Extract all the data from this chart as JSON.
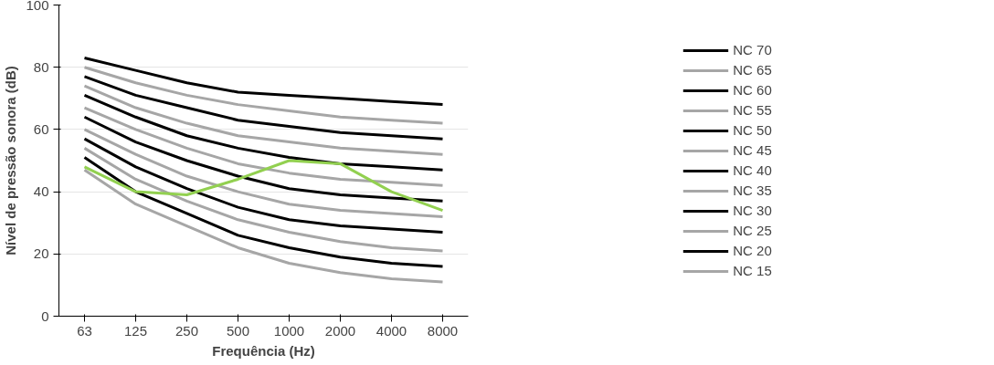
{
  "chart_data": {
    "type": "line",
    "xlabel": "Frequência (Hz)",
    "ylabel": "Nível de pressão sonora (dB)",
    "categories": [
      "63",
      "125",
      "250",
      "500",
      "1000",
      "2000",
      "4000",
      "8000"
    ],
    "ylim": [
      0,
      100
    ],
    "yticks": [
      0,
      20,
      40,
      60,
      80,
      100
    ],
    "grid": "y",
    "legend": "right",
    "marker": "none",
    "line_style": "solid",
    "series": [
      {
        "name": "NC 70",
        "color": "#000000",
        "values": [
          83,
          79,
          75,
          72,
          71,
          70,
          69,
          68
        ]
      },
      {
        "name": "NC 65",
        "color": "#a6a6a6",
        "values": [
          80,
          75,
          71,
          68,
          66,
          64,
          63,
          62
        ]
      },
      {
        "name": "NC 60",
        "color": "#000000",
        "values": [
          77,
          71,
          67,
          63,
          61,
          59,
          58,
          57
        ]
      },
      {
        "name": "NC 55",
        "color": "#a6a6a6",
        "values": [
          74,
          67,
          62,
          58,
          56,
          54,
          53,
          52
        ]
      },
      {
        "name": "NC 50",
        "color": "#000000",
        "values": [
          71,
          64,
          58,
          54,
          51,
          49,
          48,
          47
        ]
      },
      {
        "name": "NC 45",
        "color": "#a6a6a6",
        "values": [
          67,
          60,
          54,
          49,
          46,
          44,
          43,
          42
        ]
      },
      {
        "name": "NC 40",
        "color": "#000000",
        "values": [
          64,
          56,
          50,
          45,
          41,
          39,
          38,
          37
        ]
      },
      {
        "name": "NC 35",
        "color": "#a6a6a6",
        "values": [
          60,
          52,
          45,
          40,
          36,
          34,
          33,
          32
        ]
      },
      {
        "name": "NC 30",
        "color": "#000000",
        "values": [
          57,
          48,
          41,
          35,
          31,
          29,
          28,
          27
        ]
      },
      {
        "name": "NC 25",
        "color": "#a6a6a6",
        "values": [
          54,
          44,
          37,
          31,
          27,
          24,
          22,
          21
        ]
      },
      {
        "name": "NC 20",
        "color": "#000000",
        "values": [
          51,
          40,
          33,
          26,
          22,
          19,
          17,
          16
        ]
      },
      {
        "name": "NC 15",
        "color": "#a6a6a6",
        "values": [
          47,
          36,
          29,
          22,
          17,
          14,
          12,
          11
        ]
      },
      {
        "color": "#92d050",
        "values": [
          48,
          40,
          39,
          44,
          50,
          49,
          40,
          34
        ]
      }
    ]
  }
}
